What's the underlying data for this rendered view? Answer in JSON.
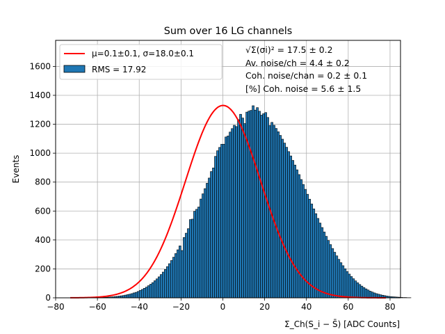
{
  "chart_data": {
    "type": "bar",
    "title": "Sum over 16 LG channels",
    "xlabel": "Σ_Ch(S_i − S̄) [ADC Counts]",
    "ylabel": "Events",
    "xlim": [
      -80,
      85
    ],
    "ylim": [
      0,
      1780
    ],
    "xticks": [
      -80,
      -60,
      -40,
      -20,
      0,
      20,
      40,
      60,
      80
    ],
    "yticks": [
      0,
      200,
      400,
      600,
      800,
      1000,
      1200,
      1400,
      1600
    ],
    "grid": true,
    "legend_position": "top-left",
    "bar_color": "#1f77b4",
    "fit_color": "#ff0000",
    "histogram": {
      "name": "RMS = 17.92",
      "bin_width": 1,
      "x_start": -60,
      "counts": [
        2,
        2,
        3,
        3,
        4,
        5,
        6,
        7,
        9,
        10,
        12,
        14,
        16,
        19,
        22,
        25,
        29,
        34,
        38,
        44,
        51,
        58,
        66,
        74,
        84,
        94,
        105,
        118,
        131,
        145,
        161,
        178,
        196,
        216,
        236,
        258,
        281,
        306,
        332,
        359,
        387,
        417,
        447,
        478,
        511,
        544,
        578,
        612,
        648,
        683,
        719,
        755,
        792,
        828,
        863,
        898,
        933,
        967,
        1000,
        1032,
        1062,
        1092,
        1119,
        1146,
        1170,
        1193,
        1214,
        1232,
        1249,
        1263,
        1275,
        1284,
        1291,
        1296,
        1298,
        1298,
        1295,
        1290,
        1283,
        1273,
        1261,
        1247,
        1231,
        1213,
        1193,
        1171,
        1148,
        1123,
        1097,
        1070,
        1041,
        1011,
        981,
        950,
        918,
        885,
        852,
        818,
        784,
        750,
        716,
        682,
        649,
        615,
        582,
        549,
        517,
        486,
        455,
        425,
        396,
        368,
        341,
        315,
        290,
        266,
        243,
        222,
        201,
        182,
        164,
        147,
        132,
        117,
        104,
        92,
        81,
        71,
        62,
        54,
        46,
        40,
        34,
        29,
        25,
        21,
        18,
        15,
        12,
        10,
        8,
        7,
        6,
        5,
        4,
        3,
        2,
        2,
        1,
        1
      ],
      "adjust": {
        "-4": 45,
        "-6": 10,
        "-3": 50,
        "-2": 40,
        "-1": 30,
        "6": -30,
        "8": 20,
        "9": -20,
        "10": -70,
        "1": 20,
        "-12": -20,
        "-16": 30,
        "-20": -60,
        "-14": 20,
        "14": 30,
        "16": 20,
        "20": 20,
        "18": -20,
        "22": -40
      }
    },
    "fit": {
      "name": "μ=0.1±0.1, σ=18.0±0.1",
      "mu": 0.1,
      "sigma": 18.0,
      "amplitude": 1330,
      "x_range": [
        -73,
        78
      ]
    },
    "annotation_lines": [
      "√Σ(σi)² = 17.5 ± 0.2",
      "Av. noise/ch = 4.4 ± 0.2",
      "Coh. noise/chan = 0.2 ± 0.1",
      "[%] Coh. noise = 5.6 ± 1.5"
    ]
  }
}
